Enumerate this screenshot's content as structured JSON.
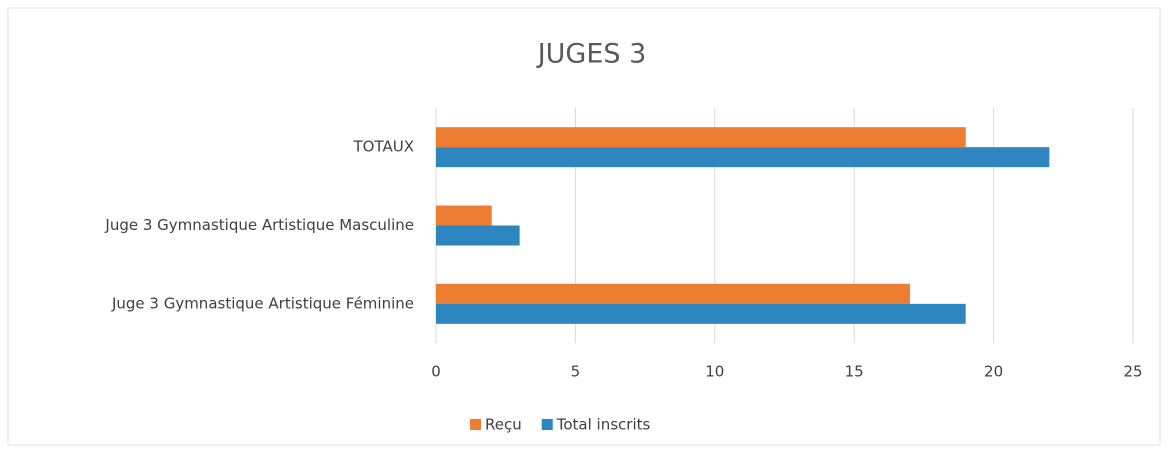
{
  "chart_data": {
    "type": "hbar",
    "title": "JUGES 3",
    "categories": [
      "TOTAUX",
      "Juge 3 Gymnastique Artistique Masculine",
      "Juge 3 Gymnastique Artistique Féminine"
    ],
    "series": [
      {
        "name": "Reçu",
        "color": "#ed7d31",
        "values": [
          19,
          2,
          17
        ]
      },
      {
        "name": "Total inscrits",
        "color": "#2e86c1",
        "values": [
          22,
          3,
          19
        ]
      }
    ],
    "xlim": [
      0,
      25
    ],
    "xticks": [
      0,
      5,
      10,
      15,
      20,
      25
    ],
    "grid": true,
    "legend": "bottom"
  }
}
